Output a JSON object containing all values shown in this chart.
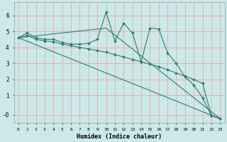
{
  "background_color": "#cce8e8",
  "grid_color": "#e8a0a0",
  "line_color": "#2d7d6e",
  "marker_color": "#2d7d6e",
  "xlabel": "Humidex (Indice chaleur)",
  "ylabel_ticks": [
    "-0",
    "1",
    "2",
    "3",
    "4",
    "5",
    "6"
  ],
  "ytick_vals": [
    -0.2,
    1,
    2,
    3,
    4,
    5,
    6
  ],
  "ylim": [
    -0.7,
    6.8
  ],
  "xlim": [
    -0.5,
    23.5
  ],
  "xtick_vals": [
    0,
    1,
    2,
    3,
    4,
    5,
    6,
    7,
    8,
    9,
    10,
    11,
    12,
    13,
    14,
    15,
    16,
    17,
    18,
    19,
    20,
    21,
    22,
    23
  ],
  "line1_x": [
    0,
    1,
    2,
    3,
    4,
    5,
    6,
    7,
    8,
    9,
    10,
    11,
    12,
    13,
    14,
    15,
    16,
    17,
    18,
    19,
    20,
    21,
    22,
    23
  ],
  "line1_y": [
    4.6,
    4.9,
    4.6,
    4.5,
    4.5,
    4.3,
    4.2,
    4.2,
    4.25,
    4.5,
    6.2,
    4.4,
    5.5,
    4.9,
    3.1,
    5.2,
    5.15,
    3.65,
    3.0,
    2.15,
    1.65,
    0.85,
    -0.25,
    -0.45
  ],
  "line2_x": [
    0,
    1,
    2,
    3,
    4,
    5,
    6,
    7,
    8,
    9,
    10,
    11,
    12,
    13,
    14,
    15,
    16,
    17,
    18,
    19,
    20,
    21,
    22,
    23
  ],
  "line2_y": [
    4.6,
    4.75,
    4.5,
    4.4,
    4.35,
    4.2,
    4.1,
    4.0,
    3.9,
    3.8,
    3.7,
    3.55,
    3.4,
    3.25,
    3.1,
    2.95,
    2.8,
    2.6,
    2.4,
    2.2,
    2.0,
    1.75,
    -0.25,
    -0.45
  ],
  "line3_x": [
    0,
    23
  ],
  "line3_y": [
    4.6,
    -0.45
  ],
  "line4_x": [
    0,
    10,
    23
  ],
  "line4_y": [
    4.6,
    5.2,
    -0.45
  ]
}
